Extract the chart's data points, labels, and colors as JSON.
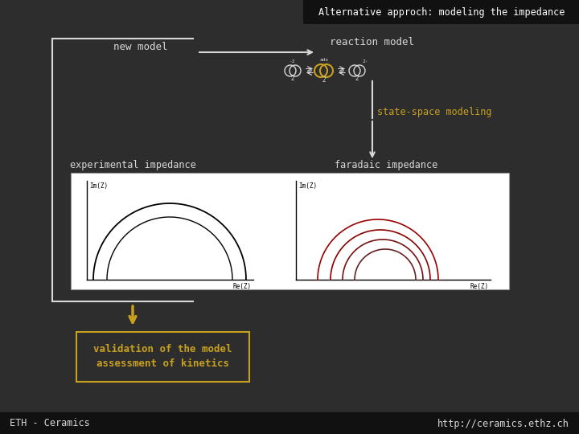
{
  "bg_color": "#2d2d2d",
  "title_box_color": "#111111",
  "title_text": "Alternative approch: modeling the impedance",
  "title_color": "#ffffff",
  "new_model_text": "new model",
  "reaction_model_text": "reaction model",
  "state_space_text": "state-space modeling",
  "state_space_color": "#c8a020",
  "exp_impedance_text": "experimental impedance",
  "far_impedance_text": "faradaic impedance",
  "validation_text": "validation of the model\nassessment of kinetics",
  "validation_color": "#c8a020",
  "eth_text": "ETH - Ceramics",
  "url_text": "http://ceramics.ethz.ch",
  "footer_bg": "#111111",
  "white_box_color": "#ffffff",
  "text_color": "#d8d8d8",
  "gold_color": "#c8a020",
  "arrow_color": "#d8d8d8",
  "red_colors": [
    "#990000",
    "#880000",
    "#771111",
    "#662222"
  ],
  "radii": [
    75,
    62,
    50,
    38
  ]
}
